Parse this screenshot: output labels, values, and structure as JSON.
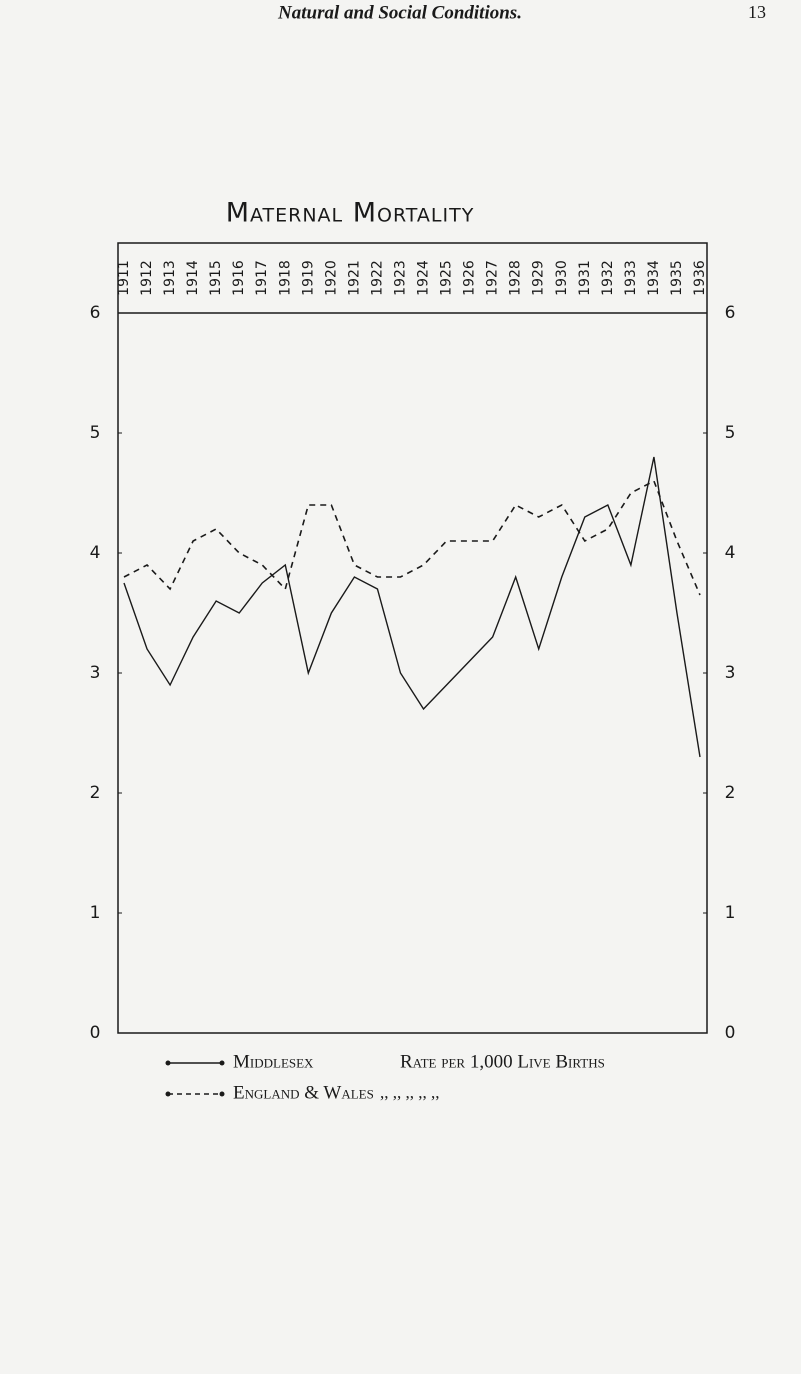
{
  "header": {
    "title": "Natural and Social Conditions.",
    "page": "13"
  },
  "chart_data": {
    "type": "line",
    "title": "Maternal Mortality",
    "ylabel": "Rate per 1,000 Live Births",
    "ylabel_ditto": ",,    ,,    ,,    ,,    ,,",
    "categories": [
      "1911",
      "1912",
      "1913",
      "1914",
      "1915",
      "1916",
      "1917",
      "1918",
      "1919",
      "1920",
      "1921",
      "1922",
      "1923",
      "1924",
      "1925",
      "1926",
      "1927",
      "1928",
      "1929",
      "1930",
      "1931",
      "1932",
      "1933",
      "1934",
      "1935",
      "1936"
    ],
    "series": [
      {
        "name": "Middlesex",
        "color": "#1a1a1a",
        "dash": false,
        "values": [
          3.75,
          3.2,
          2.9,
          3.3,
          3.6,
          3.5,
          3.75,
          3.9,
          3.0,
          3.5,
          3.8,
          3.7,
          3.0,
          2.7,
          2.9,
          3.1,
          3.3,
          3.8,
          3.2,
          3.8,
          4.3,
          4.4,
          3.9,
          4.8,
          3.5,
          2.3
        ]
      },
      {
        "name": "England & Wales",
        "color": "#1a1a1a",
        "dash": true,
        "values": [
          3.8,
          3.9,
          3.7,
          4.1,
          4.2,
          4.0,
          3.9,
          3.7,
          4.4,
          4.4,
          3.9,
          3.8,
          3.8,
          3.9,
          4.1,
          4.1,
          4.1,
          4.4,
          4.3,
          4.4,
          4.1,
          4.2,
          4.5,
          4.6,
          4.1,
          3.65
        ]
      }
    ],
    "ylim": [
      0,
      6
    ],
    "yticks": [
      0,
      1,
      2,
      3,
      4,
      5,
      6
    ]
  }
}
